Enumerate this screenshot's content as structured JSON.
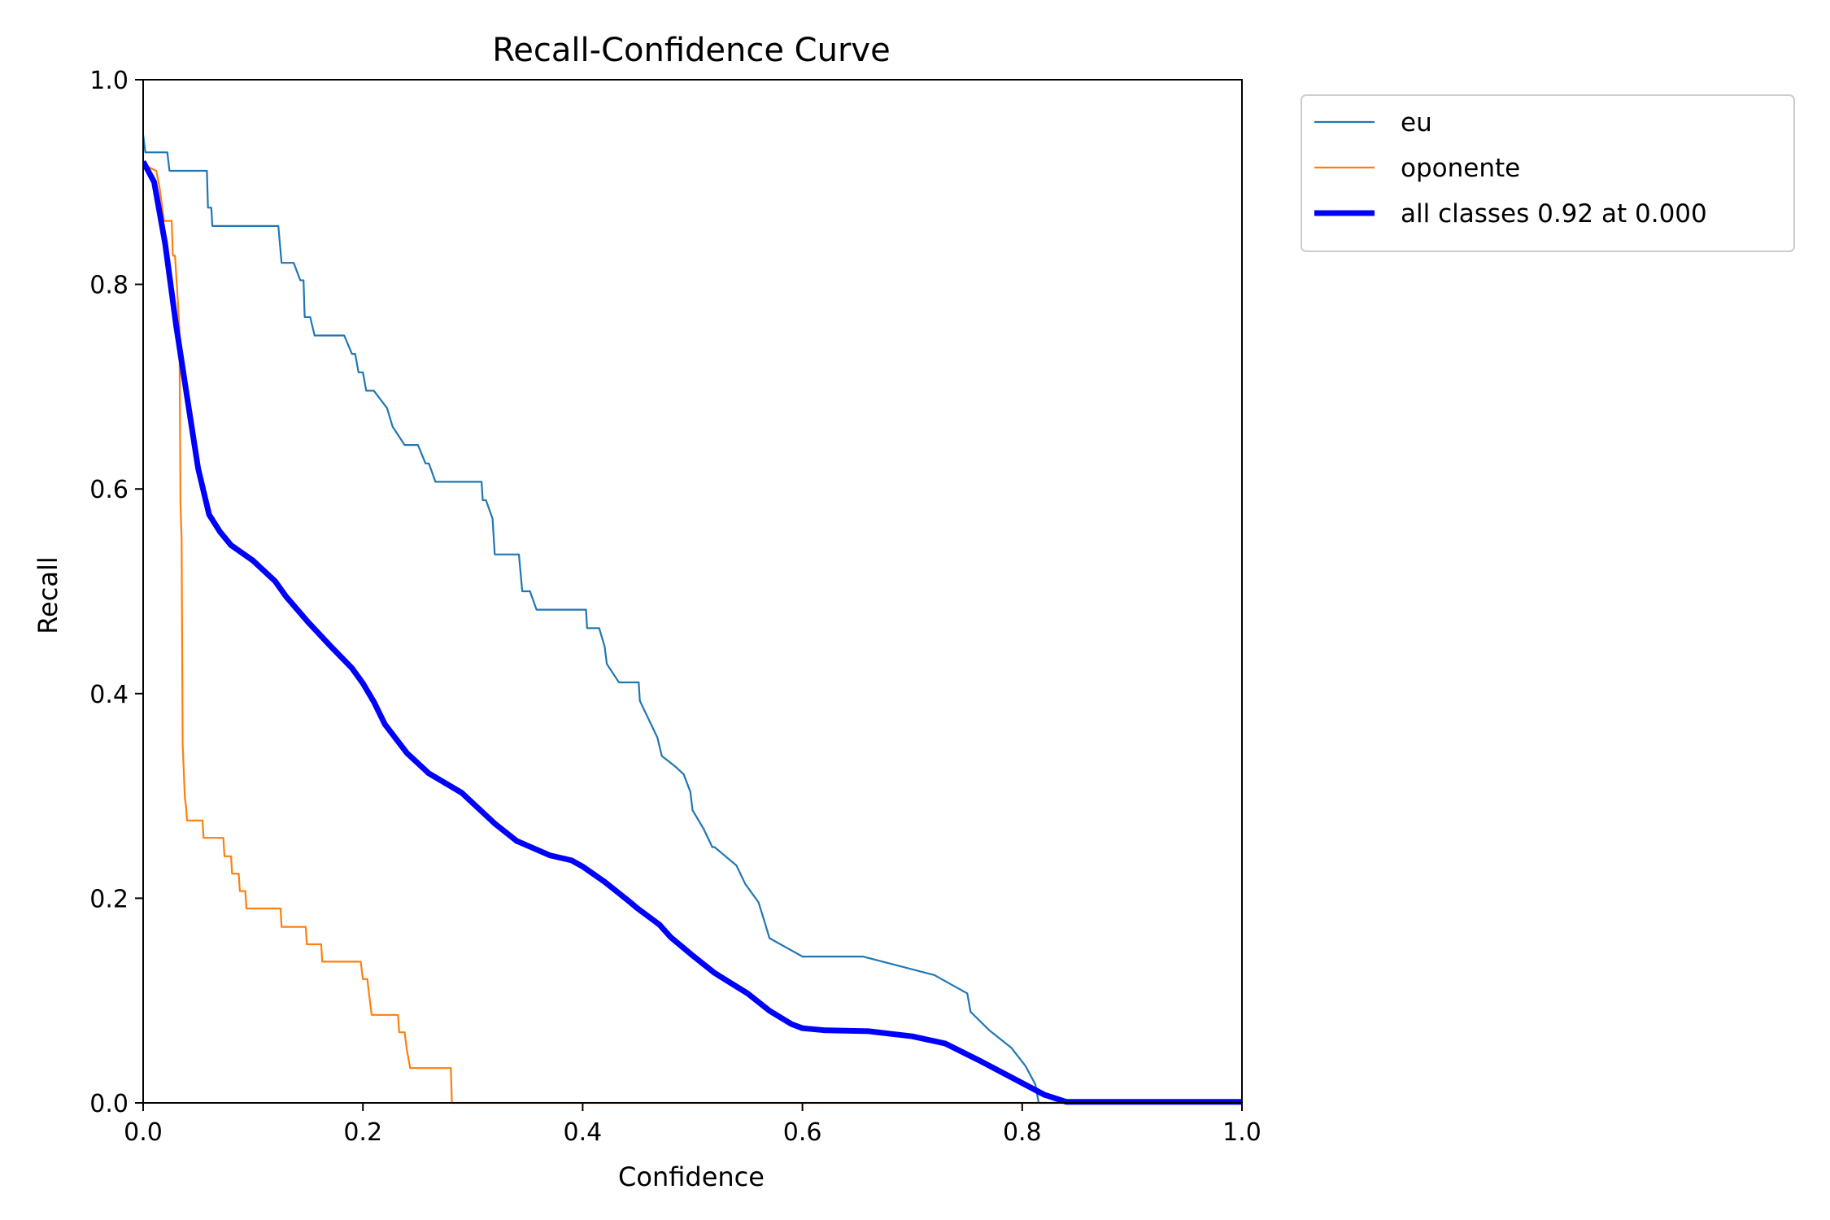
{
  "chart_data": {
    "type": "line",
    "title": "Recall-Confidence Curve",
    "xlabel": "Confidence",
    "ylabel": "Recall",
    "xlim": [
      0,
      1
    ],
    "ylim": [
      0,
      1
    ],
    "xticks": [
      "0.0",
      "0.2",
      "0.4",
      "0.6",
      "0.8",
      "1.0"
    ],
    "yticks": [
      "0.0",
      "0.2",
      "0.4",
      "0.6",
      "0.8",
      "1.0"
    ],
    "grid": false,
    "legend_position": "outside-upper-right",
    "series": [
      {
        "name": "eu",
        "color": "#1f77b4",
        "style": "thin",
        "points": [
          [
            0.0,
            0.946
          ],
          [
            0.002,
            0.929
          ],
          [
            0.022,
            0.929
          ],
          [
            0.024,
            0.911
          ],
          [
            0.058,
            0.911
          ],
          [
            0.059,
            0.875
          ],
          [
            0.062,
            0.875
          ],
          [
            0.063,
            0.857
          ],
          [
            0.123,
            0.857
          ],
          [
            0.126,
            0.821
          ],
          [
            0.137,
            0.821
          ],
          [
            0.143,
            0.804
          ],
          [
            0.146,
            0.804
          ],
          [
            0.147,
            0.768
          ],
          [
            0.152,
            0.768
          ],
          [
            0.156,
            0.75
          ],
          [
            0.183,
            0.75
          ],
          [
            0.19,
            0.732
          ],
          [
            0.193,
            0.732
          ],
          [
            0.196,
            0.714
          ],
          [
            0.2,
            0.714
          ],
          [
            0.203,
            0.696
          ],
          [
            0.21,
            0.696
          ],
          [
            0.222,
            0.679
          ],
          [
            0.227,
            0.661
          ],
          [
            0.238,
            0.643
          ],
          [
            0.25,
            0.643
          ],
          [
            0.257,
            0.625
          ],
          [
            0.26,
            0.625
          ],
          [
            0.266,
            0.607
          ],
          [
            0.308,
            0.607
          ],
          [
            0.309,
            0.589
          ],
          [
            0.312,
            0.589
          ],
          [
            0.318,
            0.571
          ],
          [
            0.32,
            0.536
          ],
          [
            0.342,
            0.536
          ],
          [
            0.345,
            0.5
          ],
          [
            0.352,
            0.5
          ],
          [
            0.358,
            0.482
          ],
          [
            0.403,
            0.482
          ],
          [
            0.404,
            0.464
          ],
          [
            0.415,
            0.464
          ],
          [
            0.42,
            0.446
          ],
          [
            0.422,
            0.429
          ],
          [
            0.433,
            0.411
          ],
          [
            0.451,
            0.411
          ],
          [
            0.452,
            0.393
          ],
          [
            0.46,
            0.375
          ],
          [
            0.468,
            0.357
          ],
          [
            0.472,
            0.339
          ],
          [
            0.484,
            0.329
          ],
          [
            0.492,
            0.321
          ],
          [
            0.498,
            0.304
          ],
          [
            0.5,
            0.286
          ],
          [
            0.51,
            0.268
          ],
          [
            0.518,
            0.25
          ],
          [
            0.52,
            0.25
          ],
          [
            0.54,
            0.232
          ],
          [
            0.548,
            0.214
          ],
          [
            0.56,
            0.196
          ],
          [
            0.565,
            0.179
          ],
          [
            0.57,
            0.161
          ],
          [
            0.6,
            0.143
          ],
          [
            0.655,
            0.143
          ],
          [
            0.72,
            0.125
          ],
          [
            0.75,
            0.107
          ],
          [
            0.753,
            0.089
          ],
          [
            0.77,
            0.071
          ],
          [
            0.79,
            0.054
          ],
          [
            0.803,
            0.036
          ],
          [
            0.812,
            0.018
          ],
          [
            0.815,
            0.0
          ],
          [
            1.0,
            0.0
          ]
        ]
      },
      {
        "name": "oponente",
        "color": "#ff7f0e",
        "style": "thin",
        "points": [
          [
            0.0,
            0.917
          ],
          [
            0.012,
            0.911
          ],
          [
            0.015,
            0.894
          ],
          [
            0.019,
            0.862
          ],
          [
            0.026,
            0.862
          ],
          [
            0.027,
            0.828
          ],
          [
            0.029,
            0.828
          ],
          [
            0.031,
            0.793
          ],
          [
            0.033,
            0.757
          ],
          [
            0.034,
            0.586
          ],
          [
            0.035,
            0.55
          ],
          [
            0.036,
            0.35
          ],
          [
            0.038,
            0.298
          ],
          [
            0.039,
            0.29
          ],
          [
            0.04,
            0.276
          ],
          [
            0.054,
            0.276
          ],
          [
            0.055,
            0.259
          ],
          [
            0.073,
            0.259
          ],
          [
            0.074,
            0.241
          ],
          [
            0.08,
            0.241
          ],
          [
            0.081,
            0.224
          ],
          [
            0.087,
            0.224
          ],
          [
            0.088,
            0.207
          ],
          [
            0.093,
            0.207
          ],
          [
            0.094,
            0.19
          ],
          [
            0.125,
            0.19
          ],
          [
            0.126,
            0.172
          ],
          [
            0.148,
            0.172
          ],
          [
            0.149,
            0.155
          ],
          [
            0.162,
            0.155
          ],
          [
            0.163,
            0.138
          ],
          [
            0.198,
            0.138
          ],
          [
            0.2,
            0.121
          ],
          [
            0.204,
            0.121
          ],
          [
            0.206,
            0.103
          ],
          [
            0.208,
            0.086
          ],
          [
            0.232,
            0.086
          ],
          [
            0.233,
            0.069
          ],
          [
            0.238,
            0.069
          ],
          [
            0.24,
            0.052
          ],
          [
            0.243,
            0.034
          ],
          [
            0.28,
            0.034
          ],
          [
            0.281,
            0.0
          ],
          [
            1.0,
            0.0
          ]
        ]
      },
      {
        "name": "all classes 0.92 at 0.000",
        "color": "#0000ff",
        "style": "thick",
        "points": [
          [
            0.0,
            0.92
          ],
          [
            0.01,
            0.9
          ],
          [
            0.02,
            0.84
          ],
          [
            0.03,
            0.76
          ],
          [
            0.04,
            0.69
          ],
          [
            0.05,
            0.62
          ],
          [
            0.06,
            0.575
          ],
          [
            0.07,
            0.558
          ],
          [
            0.08,
            0.545
          ],
          [
            0.1,
            0.53
          ],
          [
            0.12,
            0.51
          ],
          [
            0.13,
            0.495
          ],
          [
            0.15,
            0.47
          ],
          [
            0.17,
            0.447
          ],
          [
            0.19,
            0.425
          ],
          [
            0.2,
            0.41
          ],
          [
            0.21,
            0.392
          ],
          [
            0.22,
            0.37
          ],
          [
            0.24,
            0.342
          ],
          [
            0.26,
            0.322
          ],
          [
            0.29,
            0.303
          ],
          [
            0.3,
            0.293
          ],
          [
            0.31,
            0.283
          ],
          [
            0.32,
            0.273
          ],
          [
            0.34,
            0.256
          ],
          [
            0.37,
            0.242
          ],
          [
            0.39,
            0.237
          ],
          [
            0.4,
            0.231
          ],
          [
            0.42,
            0.216
          ],
          [
            0.44,
            0.199
          ],
          [
            0.45,
            0.19
          ],
          [
            0.47,
            0.174
          ],
          [
            0.48,
            0.162
          ],
          [
            0.5,
            0.144
          ],
          [
            0.52,
            0.127
          ],
          [
            0.55,
            0.107
          ],
          [
            0.57,
            0.09
          ],
          [
            0.59,
            0.077
          ],
          [
            0.6,
            0.073
          ],
          [
            0.62,
            0.071
          ],
          [
            0.66,
            0.07
          ],
          [
            0.7,
            0.065
          ],
          [
            0.73,
            0.058
          ],
          [
            0.76,
            0.042
          ],
          [
            0.79,
            0.025
          ],
          [
            0.82,
            0.008
          ],
          [
            0.84,
            0.001
          ],
          [
            1.0,
            0.001
          ]
        ]
      }
    ]
  }
}
